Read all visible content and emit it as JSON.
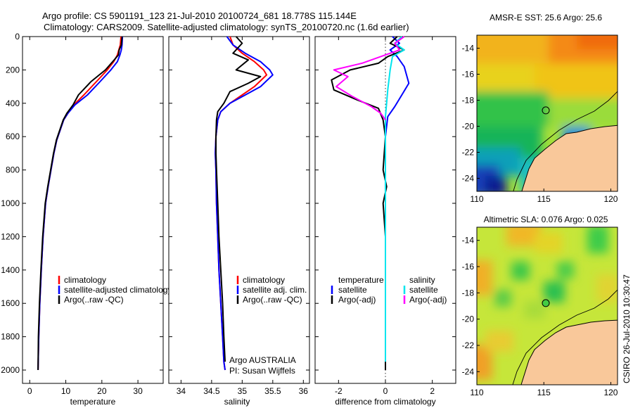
{
  "header": {
    "line1": "Argo profile: CS 5901191_123 21-Jul-2010 20100724_681 18.778S 115.144E",
    "line2": "Climatology: CARS2009. Satellite-adjusted climatology: synTS_20100720.nc (1.6d earlier)"
  },
  "side_caption": "CSIRO 26-Jul-2010 10:30:47",
  "chart_data": [
    {
      "type": "line",
      "id": "temperature",
      "xlabel": "temperature",
      "ylabel": "",
      "xlim": [
        -2,
        37
      ],
      "ylim": [
        2080,
        0
      ],
      "xticks": [
        0,
        10,
        20,
        30
      ],
      "yticks": [
        0,
        200,
        400,
        600,
        800,
        1000,
        1200,
        1400,
        1600,
        1800,
        2000
      ],
      "series": [
        {
          "name": "climatology",
          "color": "#ff0000",
          "x": [
            25.3,
            25.1,
            24.7,
            24.3,
            23.3,
            21.5,
            18.5,
            15.0,
            12.2,
            10.6,
            9.4,
            8.6,
            7.5,
            6.7,
            5.9,
            5.1,
            4.4,
            3.7,
            3.2,
            2.8,
            2.5,
            2.3
          ],
          "y": [
            0,
            50,
            80,
            110,
            150,
            200,
            270,
            350,
            410,
            460,
            500,
            550,
            620,
            700,
            800,
            900,
            1000,
            1200,
            1400,
            1600,
            1800,
            2000
          ]
        },
        {
          "name": "satellite-adjusted climatology",
          "color": "#0000ff",
          "x": [
            25.7,
            25.6,
            25.4,
            25.0,
            24.3,
            22.5,
            19.5,
            16.0,
            12.5,
            10.6,
            9.4,
            8.6,
            7.5,
            6.7,
            5.9,
            5.1,
            4.4,
            3.7,
            3.2,
            2.8,
            2.5,
            2.3
          ],
          "y": [
            0,
            50,
            80,
            110,
            150,
            200,
            270,
            350,
            410,
            460,
            500,
            550,
            620,
            700,
            800,
            900,
            1000,
            1200,
            1400,
            1600,
            1800,
            2000
          ]
        },
        {
          "name": "Argo(..raw -QC)",
          "color": "#000000",
          "x": [
            25.6,
            25.4,
            24.8,
            24.6,
            23.0,
            21.0,
            17.0,
            13.5,
            12.0,
            10.3,
            9.3,
            8.5,
            7.4,
            6.6,
            5.8,
            5.0,
            4.3,
            3.6,
            3.1,
            2.7,
            2.4,
            2.3
          ],
          "y": [
            0,
            50,
            80,
            110,
            150,
            200,
            270,
            350,
            410,
            460,
            500,
            550,
            620,
            700,
            800,
            900,
            1000,
            1200,
            1400,
            1600,
            1800,
            2000
          ]
        }
      ],
      "legend": {
        "placement": "lower-right",
        "entries": [
          "climatology",
          "satellite-adjusted climatology",
          "Argo(..raw -QC)"
        ]
      }
    },
    {
      "type": "line",
      "id": "salinity",
      "xlabel": "salinity",
      "ylabel": "",
      "xlim": [
        33.8,
        36.1
      ],
      "ylim": [
        2080,
        0
      ],
      "xticks": [
        34,
        34.5,
        35,
        35.5,
        36
      ],
      "yticks": [
        0,
        200,
        400,
        600,
        800,
        1000,
        1200,
        1400,
        1600,
        1800,
        2000
      ],
      "series": [
        {
          "name": "climatology",
          "color": "#ff0000",
          "x": [
            34.8,
            34.85,
            35.0,
            35.2,
            35.35,
            35.4,
            35.2,
            35.0,
            34.8,
            34.65,
            34.6,
            34.57,
            34.56,
            34.57,
            34.58,
            34.6,
            34.62,
            34.65,
            34.68,
            34.7,
            34.72
          ],
          "y": [
            0,
            50,
            100,
            150,
            200,
            230,
            300,
            350,
            400,
            450,
            500,
            600,
            700,
            800,
            1000,
            1200,
            1400,
            1600,
            1800,
            1950,
            2000
          ]
        },
        {
          "name": "satellite adj. clim.",
          "color": "#0000ff",
          "x": [
            34.75,
            34.85,
            35.05,
            35.3,
            35.45,
            35.5,
            35.3,
            35.05,
            34.8,
            34.65,
            34.6,
            34.57,
            34.56,
            34.57,
            34.58,
            34.6,
            34.62,
            34.65,
            34.68,
            34.7,
            34.72
          ],
          "y": [
            0,
            50,
            100,
            150,
            200,
            230,
            300,
            350,
            400,
            450,
            500,
            600,
            700,
            800,
            1000,
            1200,
            1400,
            1600,
            1800,
            1950,
            2000
          ]
        },
        {
          "name": "Argo(..raw -QC)",
          "color": "#000000",
          "x": [
            34.9,
            35.0,
            34.85,
            35.1,
            34.9,
            35.3,
            35.1,
            34.8,
            34.7,
            34.6,
            34.58,
            34.57,
            34.57,
            34.58,
            34.6,
            34.62,
            34.65,
            34.68,
            34.7,
            34.72
          ],
          "y": [
            0,
            40,
            100,
            140,
            200,
            240,
            280,
            330,
            400,
            450,
            500,
            600,
            700,
            800,
            1000,
            1200,
            1400,
            1600,
            1800,
            1950
          ]
        }
      ],
      "legend": {
        "placement": "lower-right",
        "entries": [
          "climatology",
          "satellite adj. clim.",
          "Argo(..raw -QC)"
        ]
      },
      "annotations": [
        "Argo AUSTRALIA",
        "PI: Susan Wijffels"
      ]
    },
    {
      "type": "line",
      "id": "difference",
      "xlabel": "difference from climatology",
      "ylabel": "",
      "xlim": [
        -3,
        3
      ],
      "ylim": [
        2080,
        0
      ],
      "xticks": [
        -2,
        0,
        2
      ],
      "yticks": [
        0,
        200,
        400,
        600,
        800,
        1000,
        1200,
        1400,
        1600,
        1800,
        2000
      ],
      "series": [
        {
          "name": "temperature satellite",
          "color": "#0000ff",
          "x": [
            0.3,
            0.6,
            0.2,
            0.5,
            0.8,
            0.9,
            1.0,
            0.7,
            0.4,
            0.1,
            0.0,
            0.0,
            0.0
          ],
          "y": [
            0,
            40,
            80,
            120,
            180,
            230,
            280,
            350,
            420,
            480,
            600,
            800,
            1000
          ]
        },
        {
          "name": "temperature Argo(-adj)",
          "color": "#000000",
          "x": [
            0.5,
            0.2,
            0.8,
            0.1,
            -0.3,
            -1.5,
            -2.3,
            -2.2,
            -1.2,
            -0.3,
            -0.1,
            0.0,
            -0.1,
            0.05,
            -0.1,
            0.0,
            0.0,
            0.0
          ],
          "y": [
            0,
            40,
            80,
            120,
            160,
            200,
            260,
            320,
            380,
            430,
            500,
            600,
            800,
            900,
            1000,
            1200,
            1600,
            2000
          ]
        },
        {
          "name": "salinity satellite",
          "color": "#00e5ee",
          "x": [
            0.7,
            0.4,
            0.8,
            0.3,
            0.2,
            0.15,
            0.1,
            0.05,
            0.0,
            0.0,
            0.0,
            0.0,
            0.0,
            0.0
          ],
          "y": [
            0,
            40,
            80,
            120,
            200,
            260,
            320,
            400,
            480,
            600,
            800,
            1200,
            1600,
            1950
          ]
        },
        {
          "name": "salinity Argo(-adj)",
          "color": "#ff00ff",
          "x": [
            0.8,
            0.4,
            0.6,
            -0.2,
            -1.0,
            -2.2,
            -1.6,
            -2.1,
            -1.4,
            -0.6,
            -0.2,
            0.0
          ],
          "y": [
            0,
            40,
            80,
            120,
            160,
            200,
            240,
            300,
            360,
            420,
            460,
            500
          ]
        }
      ],
      "legend": {
        "placement": "lower-right",
        "columns": [
          {
            "title": "temperature",
            "entries": [
              "satellite",
              "Argo(-adj)"
            ]
          },
          {
            "title": "salinity",
            "entries": [
              "satellite",
              "Argo(-adj)"
            ]
          }
        ]
      }
    },
    {
      "type": "heatmap",
      "id": "sst-map",
      "title": "AMSR-E SST: 25.6 Argo: 25.6",
      "xlim": [
        110,
        120.5
      ],
      "ylim": [
        -25,
        -13
      ],
      "xticks": [
        110,
        115,
        120
      ],
      "yticks": [
        -14,
        -16,
        -18,
        -20,
        -22,
        -24
      ],
      "argo_position": {
        "lon": 115.144,
        "lat": -18.778
      }
    },
    {
      "type": "heatmap",
      "id": "sla-map",
      "title": "Altimetric SLA: 0.076 Argo: 0.025",
      "xlim": [
        110,
        120.5
      ],
      "ylim": [
        -25,
        -13
      ],
      "xticks": [
        110,
        115,
        120
      ],
      "yticks": [
        -14,
        -16,
        -18,
        -20,
        -22,
        -24
      ],
      "argo_position": {
        "lon": 115.144,
        "lat": -18.778
      }
    }
  ]
}
